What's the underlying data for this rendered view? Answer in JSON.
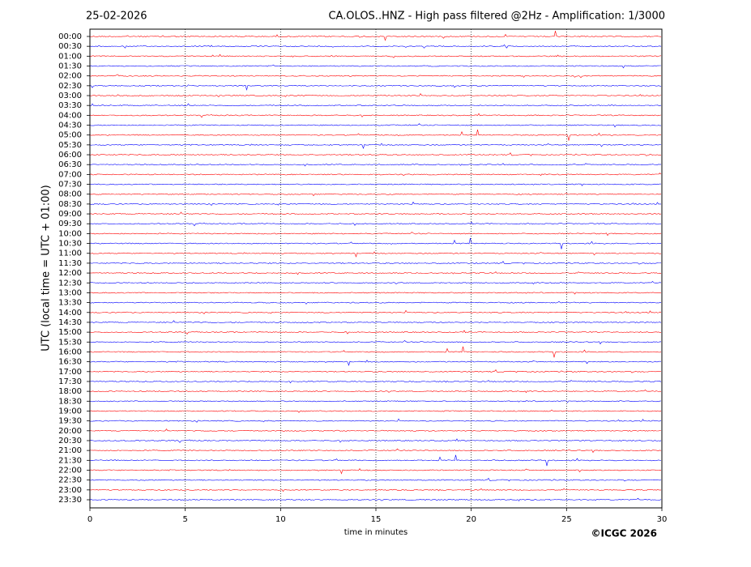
{
  "chart_data": {
    "type": "helicorder",
    "date": "25-02-2026",
    "title": "CA.OLOS..HNZ - High pass filtered @2Hz - Amplification: 1/3000",
    "ylabel": "UTC (local time = UTC + 01:00)",
    "xlabel": "time in minutes",
    "categories": [
      "00:00",
      "00:30",
      "01:00",
      "01:30",
      "02:00",
      "02:30",
      "03:00",
      "03:30",
      "04:00",
      "04:30",
      "05:00",
      "05:30",
      "06:00",
      "06:30",
      "07:00",
      "07:30",
      "08:00",
      "08:30",
      "09:00",
      "09:30",
      "10:00",
      "10:30",
      "11:00",
      "11:30",
      "12:00",
      "12:30",
      "13:00",
      "13:30",
      "14:00",
      "14:30",
      "15:00",
      "15:30",
      "16:00",
      "16:30",
      "17:00",
      "17:30",
      "18:00",
      "18:30",
      "19:00",
      "19:30",
      "20:00",
      "20:30",
      "21:00",
      "21:30",
      "22:00",
      "22:30",
      "23:00",
      "23:30"
    ],
    "colors": [
      "#ff0000",
      "#0000ff"
    ],
    "xlim": [
      0,
      30
    ],
    "xticks": [
      0,
      5,
      10,
      15,
      20,
      25,
      30
    ],
    "grid": true,
    "copyright": "©ICGC 2026"
  }
}
